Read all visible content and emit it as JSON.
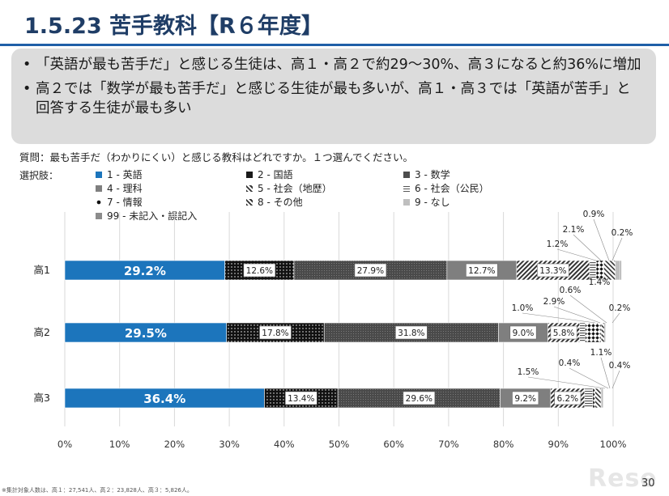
{
  "slide": {
    "title": "1.5.23 苦手教科【R６年度】",
    "bullets": [
      "「英語が最も苦手だ」と感じる生徒は、高１・高２で約29～30%、高３になると約36%に増加",
      "高２では「数学が最も苦手だ」と感じる生徒が最も多いが、高１・高３では「英語が苦手」と回答する生徒が最も多い"
    ],
    "question": "質問：最も苦手だ（わかりにくい）と感じる教科はどれですか。１つ選んでください。",
    "options_label": "選択肢：",
    "footnote": "※集計対象人数は、高１：27,541人、高２：23,828人、高３：5,826人。",
    "page_number": "30",
    "logo_text": "Rese"
  },
  "chart_data": {
    "type": "bar",
    "orientation": "horizontal",
    "stacked": true,
    "categories": [
      "高1",
      "高2",
      "高3"
    ],
    "series": [
      {
        "name": "1 - 英語",
        "values": [
          29.2,
          29.5,
          36.4
        ],
        "color": "#1c75bc",
        "pattern": "solid"
      },
      {
        "name": "2 - 国語",
        "values": [
          12.6,
          17.8,
          13.4
        ],
        "color": "#1a1a1a",
        "pattern": "dots"
      },
      {
        "name": "3 - 数学",
        "values": [
          27.9,
          31.8,
          29.6
        ],
        "color": "#4d4d4d",
        "pattern": "fine-dots"
      },
      {
        "name": "4 - 理科",
        "values": [
          12.7,
          9.0,
          9.2
        ],
        "color": "#7f7f7f",
        "pattern": "solid"
      },
      {
        "name": "5 - 社会（地歴）",
        "values": [
          13.3,
          5.8,
          6.2
        ],
        "color": "#333333",
        "pattern": "diagonal"
      },
      {
        "name": "6 - 社会（公民）",
        "values": [
          1.2,
          1.0,
          1.5
        ],
        "color": "#555555",
        "pattern": "horizontal"
      },
      {
        "name": "7 - 情報",
        "values": [
          1.4,
          2.9,
          0.4
        ],
        "color": "#111111",
        "pattern": "diamond"
      },
      {
        "name": "8 - その他",
        "values": [
          2.1,
          0.6,
          1.1
        ],
        "color": "#333333",
        "pattern": "zigzag"
      },
      {
        "name": "9 - なし",
        "values": [
          0.9,
          0.0,
          0.4
        ],
        "color": "#bfbfbf",
        "pattern": "solid"
      },
      {
        "name": "99 - 未記入・誤記入",
        "values": [
          0.2,
          0.2,
          0.0
        ],
        "color": "#8c8c8c",
        "pattern": "solid"
      }
    ],
    "inside_labels": [
      [
        "29.2%",
        "12.6%",
        "27.9%",
        "12.7%",
        "13.3%"
      ],
      [
        "29.5%",
        "17.8%",
        "31.8%",
        "9.0%",
        "5.8%"
      ],
      [
        "36.4%",
        "13.4%",
        "29.6%",
        "9.2%",
        "6.2%"
      ]
    ],
    "callout_labels": [
      [
        "1.2%",
        "2.1%",
        "0.9%",
        "0.2%",
        "1.4%"
      ],
      [
        "1.0%",
        "2.9%",
        "0.6%",
        "0.2%"
      ],
      [
        "1.5%",
        "0.4%",
        "1.1%",
        "0.4%"
      ]
    ],
    "xlim": [
      0,
      100
    ],
    "xticks": [
      "0%",
      "10%",
      "20%",
      "30%",
      "40%",
      "50%",
      "60%",
      "70%",
      "80%",
      "90%",
      "100%"
    ],
    "grid": true,
    "legend_position": "top"
  }
}
